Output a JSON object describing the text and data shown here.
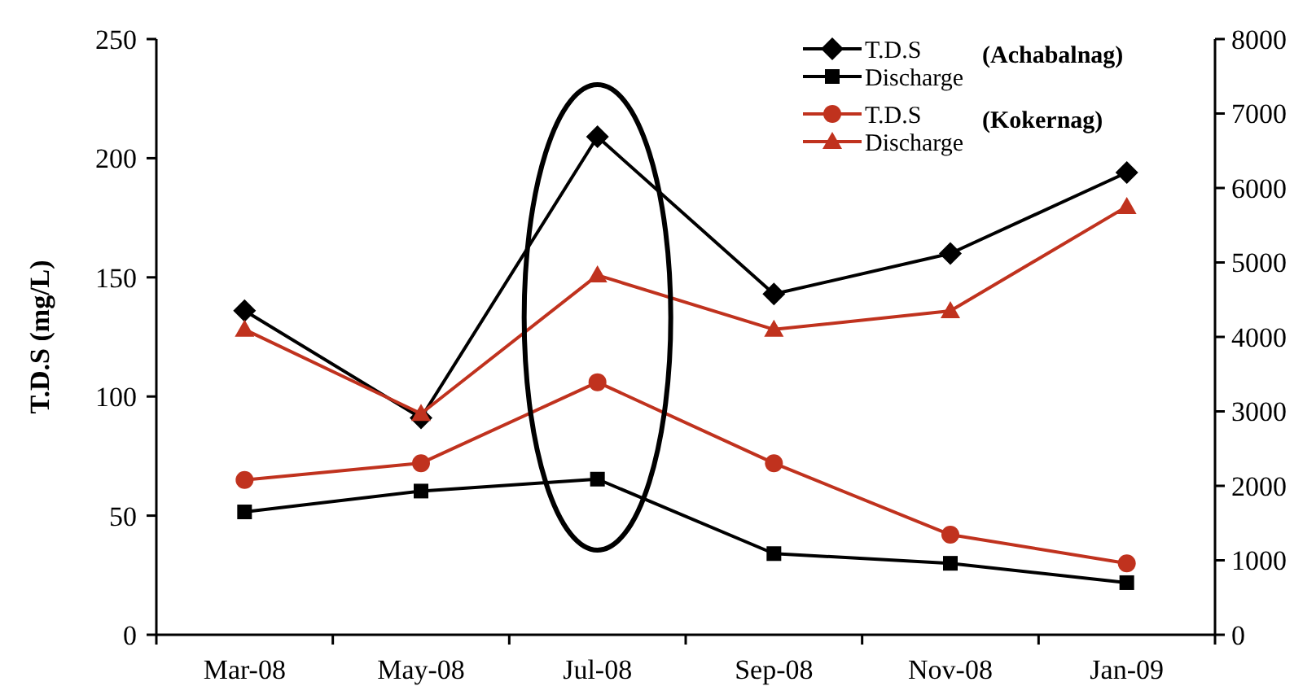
{
  "chart_data": {
    "type": "line",
    "ylabel": "T.D.S (mg/L)",
    "categories": [
      "Mar-08",
      "May-08",
      "Jul-08",
      "Sep-08",
      "Nov-08",
      "Jan-09"
    ],
    "ylim": [
      0,
      250
    ],
    "yticks": [
      0,
      50,
      100,
      150,
      200,
      250
    ],
    "y2lim": [
      0,
      8000
    ],
    "y2ticks": [
      0,
      1000,
      2000,
      3000,
      4000,
      5000,
      6000,
      7000,
      8000
    ],
    "grid": false,
    "legend": "top right",
    "line_style": "solid",
    "annotations": [
      "(Achabalnag)",
      "(Kokernag)"
    ],
    "series": [
      {
        "name": "T.D.S",
        "color": "#000000",
        "marker": "diamond",
        "values": [
          136,
          91,
          209,
          143,
          160,
          194
        ]
      },
      {
        "name": "Discharge",
        "color": "#000000",
        "marker": "square",
        "axis": "y2",
        "values": [
          1650,
          1930,
          2090,
          1090,
          960,
          700
        ]
      },
      {
        "name": "T.D.S",
        "color": "#c0321e",
        "marker": "circle",
        "values": [
          65,
          72,
          106,
          72,
          42,
          30
        ]
      },
      {
        "name": "Discharge",
        "color": "#c0321e",
        "marker": "triangle",
        "axis": "y2",
        "values": [
          4100,
          2970,
          4830,
          4100,
          4350,
          5750
        ]
      }
    ]
  }
}
